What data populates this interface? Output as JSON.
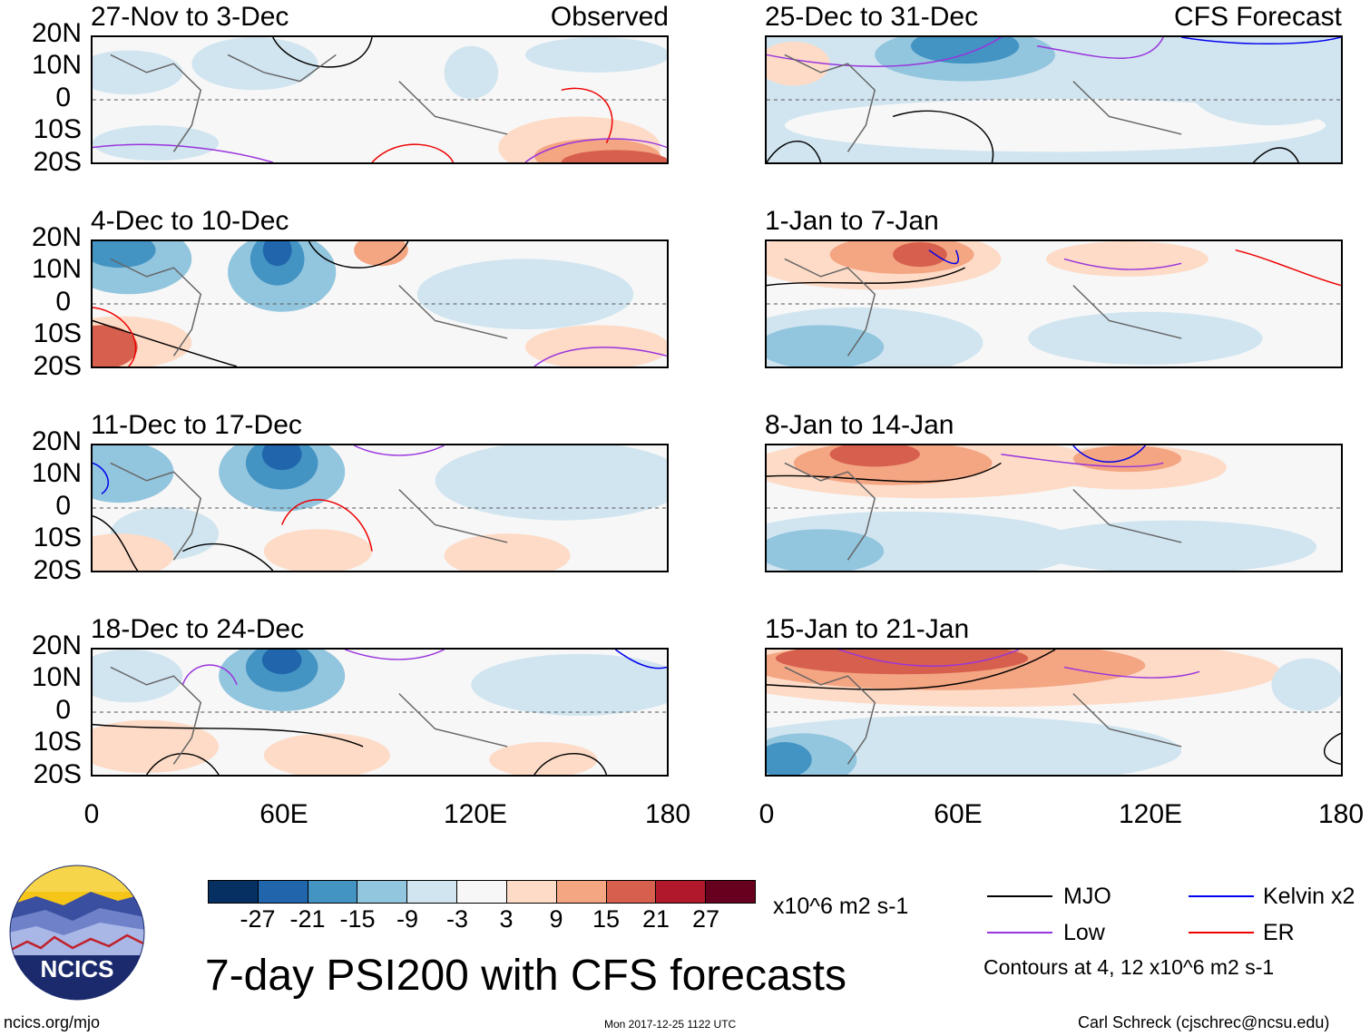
{
  "left_column": {
    "header_label": "Observed",
    "panels": [
      {
        "title": "27-Nov to 3-Dec"
      },
      {
        "title": "4-Dec to 10-Dec"
      },
      {
        "title": "11-Dec to 17-Dec"
      },
      {
        "title": "18-Dec to 24-Dec"
      }
    ]
  },
  "right_column": {
    "header_label": "CFS Forecast",
    "panels": [
      {
        "title": "25-Dec to 31-Dec"
      },
      {
        "title": "1-Jan to 7-Jan"
      },
      {
        "title": "8-Jan to 14-Jan"
      },
      {
        "title": "15-Jan to 21-Jan"
      }
    ]
  },
  "axes": {
    "lat_labels": [
      "20N",
      "10N",
      "0",
      "10S",
      "20S"
    ],
    "lon_labels": [
      "0",
      "60E",
      "120E",
      "180"
    ]
  },
  "colorbar": {
    "colors": [
      "#053061",
      "#2166ac",
      "#4393c3",
      "#92c5de",
      "#d1e5f0",
      "#f7f7f7",
      "#fddbc7",
      "#f4a582",
      "#d6604d",
      "#b2182b",
      "#67001f"
    ],
    "labels": [
      "-27",
      "-21",
      "-15",
      "-9",
      "-3",
      "3",
      "9",
      "15",
      "21",
      "27"
    ],
    "units": "x10^6 m2 s-1"
  },
  "title": "7-day PSI200 with CFS forecasts",
  "legend": {
    "items": [
      {
        "label": "MJO",
        "color": "#000000"
      },
      {
        "label": "Kelvin x2",
        "color": "#0000ee"
      },
      {
        "label": "Low",
        "color": "#9933dd"
      },
      {
        "label": "ER",
        "color": "#ee0000"
      }
    ],
    "note": "Contours at 4, 12 x10^6 m2 s-1"
  },
  "logo": {
    "text": "NCICS"
  },
  "footer": {
    "left": "ncics.org/mjo",
    "center": "Mon 2017-12-25 1122 UTC",
    "right": "Carl Schreck (cjschrec@ncsu.edu)"
  }
}
